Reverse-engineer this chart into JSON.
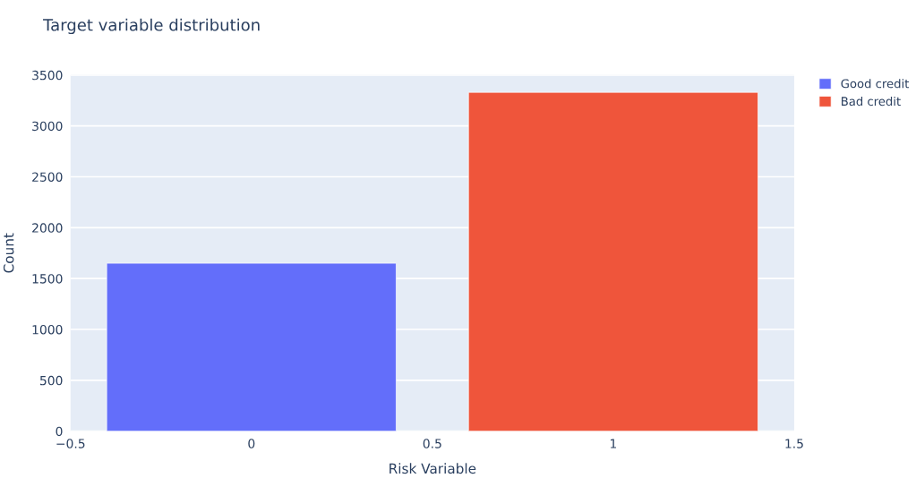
{
  "chart_data": {
    "type": "bar",
    "title": "Target variable distribution",
    "xlabel": "Risk Variable",
    "ylabel": "Count",
    "series": [
      {
        "name": "Good credit",
        "color": "#636efa",
        "x": [
          0
        ],
        "values": [
          1650
        ]
      },
      {
        "name": "Bad credit",
        "color": "#ef553b",
        "x": [
          1
        ],
        "values": [
          3330
        ]
      }
    ],
    "xlim": [
      -0.5,
      1.5
    ],
    "xticks": [
      {
        "value": -0.5,
        "label": "−0.5"
      },
      0,
      0.5,
      1,
      1.5
    ],
    "ylim": [
      0,
      3500
    ],
    "yticks": [
      0,
      500,
      1000,
      1500,
      2000,
      2500,
      3000,
      3500
    ],
    "grid": "y",
    "legend": "top right"
  }
}
